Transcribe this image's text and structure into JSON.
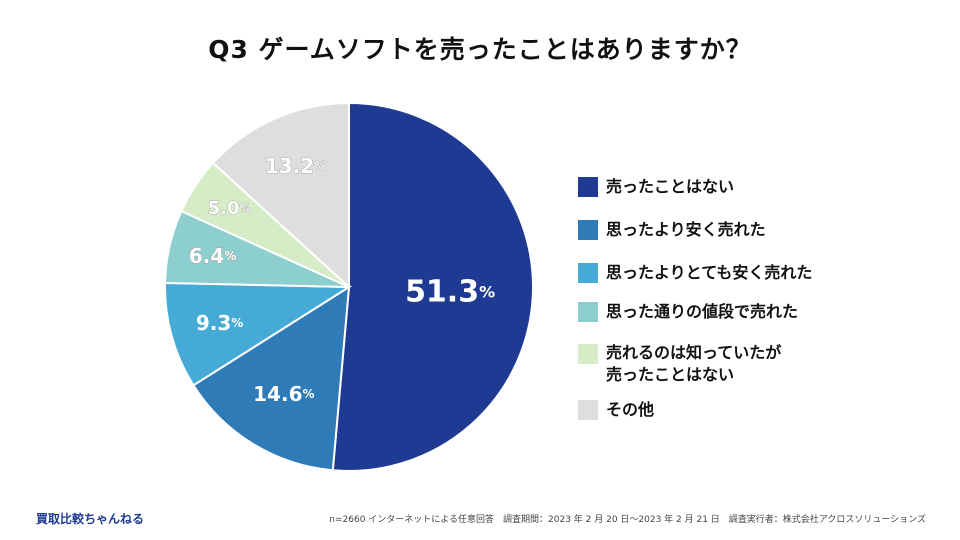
{
  "title": "Q3  ゲームソフトを売ったことはありますか？",
  "chart_data": {
    "type": "pie",
    "title": "Q3  ゲームソフトを売ったことはありますか？",
    "unit": "%",
    "start_angle_deg": 0,
    "direction": "clockwise",
    "legend_position": "right",
    "slices": [
      {
        "label": "売ったことはない",
        "value": 51.3,
        "value_text": "51.3",
        "color": "#1f3a93"
      },
      {
        "label": "思ったより安く売れた",
        "value": 14.6,
        "value_text": "14.6",
        "color": "#2e7bb8"
      },
      {
        "label": "思ったよりとても安く売れた",
        "value": 9.3,
        "value_text": "9.3",
        "color": "#45aad6"
      },
      {
        "label": "思った通りの値段で売れた",
        "value": 6.4,
        "value_text": "6.4",
        "color": "#8ccfce"
      },
      {
        "label": "売れるのは知っていたが\n売ったことはない",
        "value": 5.0,
        "value_text": "5.0",
        "color": "#d6ecc6"
      },
      {
        "label": "その他",
        "value": 13.2,
        "value_text": "13.2",
        "color": "#dedede"
      }
    ]
  },
  "footer": {
    "brand": "買取比較ちゃんねる",
    "note": "n=2660 インターネットによる任意回答　調査期間：2023 年 2 月 20 日～2023 年 2 月 21 日　調査実行者：株式会社アクロスソリューションズ"
  }
}
